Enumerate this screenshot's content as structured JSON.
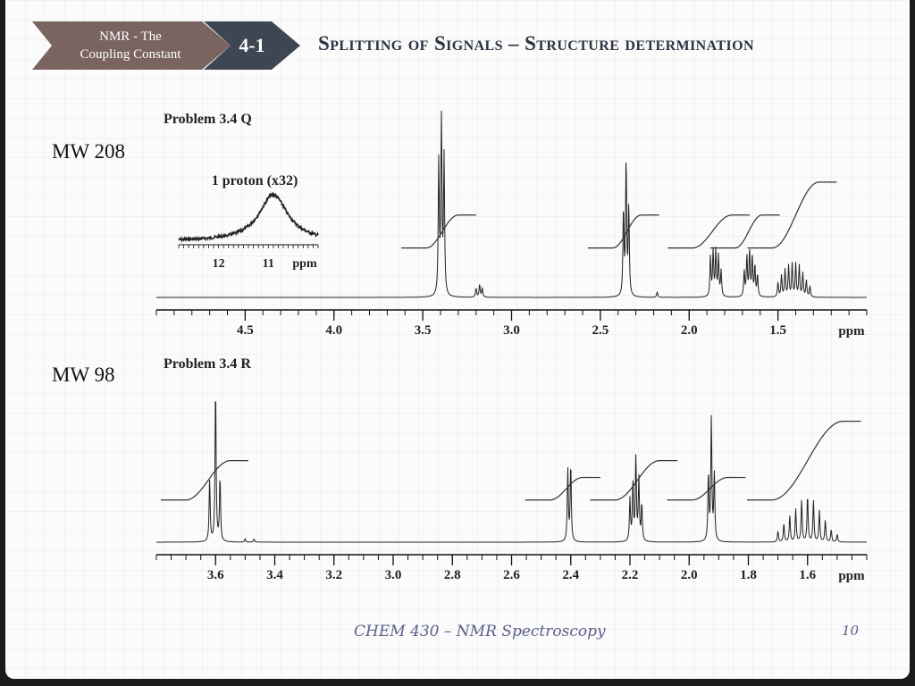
{
  "breadcrumb": {
    "section": "NMR - The Coupling Constant",
    "section_line1": "NMR - The",
    "section_line2": "Coupling Constant",
    "number": "4-1"
  },
  "title": "Splitting of Signals – Structure determination",
  "footer": {
    "course": "CHEM 430 – NMR Spectroscopy",
    "page": "10"
  },
  "colors": {
    "breadcrumb_section": "#7a6460",
    "breadcrumb_number": "#3f4653",
    "title": "#2c3444",
    "footer": "#5a5f8a"
  },
  "chart_data": [
    {
      "type": "line",
      "title": "Problem 3.4 Q",
      "side_label": "MW 208",
      "xlabel": "ppm",
      "x_reversed": true,
      "xlim": [
        5.0,
        1.0
      ],
      "ticks": [
        4.5,
        4.0,
        3.5,
        3.0,
        2.5,
        2.0,
        1.5
      ],
      "tick_labels": [
        "4.5",
        "4.0",
        "3.5",
        "3.0",
        "2.5",
        "2.0",
        "1.5"
      ],
      "peaks": [
        {
          "ppm": 3.41,
          "h": 0.72
        },
        {
          "ppm": 3.395,
          "h": 1.0
        },
        {
          "ppm": 3.38,
          "h": 0.75
        },
        {
          "ppm": 3.2,
          "h": 0.05
        },
        {
          "ppm": 3.18,
          "h": 0.07
        },
        {
          "ppm": 3.165,
          "h": 0.05
        },
        {
          "ppm": 2.37,
          "h": 0.47
        },
        {
          "ppm": 2.355,
          "h": 0.74
        },
        {
          "ppm": 2.34,
          "h": 0.49
        },
        {
          "ppm": 2.18,
          "h": 0.03
        },
        {
          "ppm": 1.88,
          "h": 0.22
        },
        {
          "ppm": 1.865,
          "h": 0.25
        },
        {
          "ppm": 1.85,
          "h": 0.25
        },
        {
          "ppm": 1.835,
          "h": 0.22
        },
        {
          "ppm": 1.82,
          "h": 0.14
        },
        {
          "ppm": 1.69,
          "h": 0.14
        },
        {
          "ppm": 1.675,
          "h": 0.22
        },
        {
          "ppm": 1.66,
          "h": 0.25
        },
        {
          "ppm": 1.645,
          "h": 0.22
        },
        {
          "ppm": 1.63,
          "h": 0.17
        },
        {
          "ppm": 1.615,
          "h": 0.12
        },
        {
          "ppm": 1.5,
          "h": 0.08
        },
        {
          "ppm": 1.48,
          "h": 0.12
        },
        {
          "ppm": 1.46,
          "h": 0.15
        },
        {
          "ppm": 1.44,
          "h": 0.17
        },
        {
          "ppm": 1.42,
          "h": 0.18
        },
        {
          "ppm": 1.4,
          "h": 0.18
        },
        {
          "ppm": 1.38,
          "h": 0.17
        },
        {
          "ppm": 1.36,
          "h": 0.13
        },
        {
          "ppm": 1.34,
          "h": 0.09
        },
        {
          "ppm": 1.32,
          "h": 0.06
        }
      ],
      "integrals": [
        {
          "from": 3.48,
          "to": 3.3,
          "rise": 0.25
        },
        {
          "from": 2.43,
          "to": 2.27,
          "rise": 0.25
        },
        {
          "from": 1.98,
          "to": 1.76,
          "rise": 0.25
        },
        {
          "from": 1.74,
          "to": 1.59,
          "rise": 0.25
        },
        {
          "from": 1.53,
          "to": 1.27,
          "rise": 0.5
        }
      ],
      "inset": {
        "label": "1 proton (x32)",
        "xlabel": "ppm",
        "xlim": [
          12.8,
          10.0
        ],
        "ticks": [
          12,
          11
        ],
        "tick_labels": [
          "12",
          "11"
        ],
        "peak_center": 10.9,
        "peak_width": 0.35
      }
    },
    {
      "type": "line",
      "title": "Problem 3.4 R",
      "side_label": "MW 98",
      "xlabel": "ppm",
      "x_reversed": true,
      "xlim": [
        3.8,
        1.4
      ],
      "ticks": [
        3.6,
        3.4,
        3.2,
        3.0,
        2.8,
        2.6,
        2.4,
        2.2,
        2.0,
        1.8,
        1.6
      ],
      "tick_labels": [
        "3.6",
        "3.4",
        "3.2",
        "3.0",
        "2.8",
        "2.6",
        "2.4",
        "2.2",
        "2.0",
        "1.8",
        "1.6"
      ],
      "peaks": [
        {
          "ppm": 3.62,
          "h": 0.4
        },
        {
          "ppm": 3.6,
          "h": 1.0
        },
        {
          "ppm": 3.585,
          "h": 0.41
        },
        {
          "ppm": 3.5,
          "h": 0.02
        },
        {
          "ppm": 3.47,
          "h": 0.02
        },
        {
          "ppm": 2.41,
          "h": 0.46
        },
        {
          "ppm": 2.4,
          "h": 0.5
        },
        {
          "ppm": 2.2,
          "h": 0.27
        },
        {
          "ppm": 2.19,
          "h": 0.38
        },
        {
          "ppm": 2.18,
          "h": 0.54
        },
        {
          "ppm": 2.17,
          "h": 0.4
        },
        {
          "ppm": 2.16,
          "h": 0.24
        },
        {
          "ppm": 1.935,
          "h": 0.43
        },
        {
          "ppm": 1.925,
          "h": 0.79
        },
        {
          "ppm": 1.915,
          "h": 0.43
        },
        {
          "ppm": 1.7,
          "h": 0.07
        },
        {
          "ppm": 1.68,
          "h": 0.12
        },
        {
          "ppm": 1.66,
          "h": 0.17
        },
        {
          "ppm": 1.64,
          "h": 0.21
        },
        {
          "ppm": 1.62,
          "h": 0.27
        },
        {
          "ppm": 1.6,
          "h": 0.3
        },
        {
          "ppm": 1.58,
          "h": 0.27
        },
        {
          "ppm": 1.56,
          "h": 0.2
        },
        {
          "ppm": 1.54,
          "h": 0.14
        },
        {
          "ppm": 1.52,
          "h": 0.08
        },
        {
          "ppm": 1.5,
          "h": 0.05
        }
      ],
      "integrals": [
        {
          "from": 3.7,
          "to": 3.55,
          "rise": 0.35
        },
        {
          "from": 2.47,
          "to": 2.36,
          "rise": 0.2
        },
        {
          "from": 2.25,
          "to": 2.1,
          "rise": 0.35
        },
        {
          "from": 1.99,
          "to": 1.87,
          "rise": 0.2
        },
        {
          "from": 1.72,
          "to": 1.48,
          "rise": 0.7
        }
      ]
    }
  ]
}
